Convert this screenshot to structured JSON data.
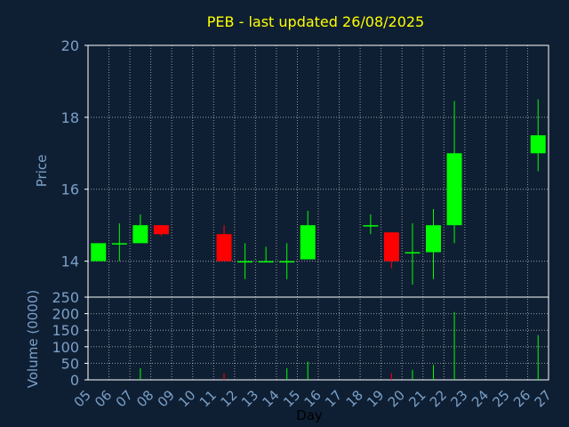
{
  "chart_data": {
    "type": "candlestick",
    "title": "PEB - last updated 26/08/2025",
    "xlabel": "Day",
    "price_panel": {
      "ylabel": "Price",
      "ylim": [
        13,
        20
      ],
      "yticks": [
        14,
        16,
        18,
        20
      ],
      "grid": true
    },
    "volume_panel": {
      "ylabel": "Volume (0000)",
      "ylim": [
        0,
        250
      ],
      "yticks": [
        0,
        50,
        100,
        150,
        200,
        250
      ],
      "grid": true
    },
    "x_ticks": [
      "05",
      "06",
      "07",
      "08",
      "09",
      "10",
      "11",
      "12",
      "13",
      "14",
      "15",
      "16",
      "17",
      "18",
      "19",
      "20",
      "21",
      "22",
      "23",
      "24",
      "25",
      "26",
      "27"
    ],
    "candles": [
      {
        "day": "05",
        "open": 14.0,
        "high": 14.5,
        "low": 14.0,
        "close": 14.5,
        "volume": 0
      },
      {
        "day": "06",
        "open": 14.5,
        "high": 15.05,
        "low": 14.0,
        "close": 14.5,
        "volume": 0
      },
      {
        "day": "07",
        "open": 14.5,
        "high": 15.3,
        "low": 14.5,
        "close": 15.0,
        "volume": 35
      },
      {
        "day": "08",
        "open": 15.0,
        "high": 15.0,
        "low": 14.7,
        "close": 14.75,
        "volume": 0
      },
      {
        "day": "11",
        "open": 14.75,
        "high": 15.0,
        "low": 14.0,
        "close": 14.0,
        "volume": 20
      },
      {
        "day": "12",
        "open": 14.0,
        "high": 14.5,
        "low": 13.5,
        "close": 14.0,
        "volume": 0
      },
      {
        "day": "13",
        "open": 14.0,
        "high": 14.4,
        "low": 14.0,
        "close": 14.0,
        "volume": 0
      },
      {
        "day": "14",
        "open": 14.0,
        "high": 14.5,
        "low": 13.5,
        "close": 14.0,
        "volume": 35
      },
      {
        "day": "15",
        "open": 14.05,
        "high": 15.4,
        "low": 14.05,
        "close": 15.0,
        "volume": 55
      },
      {
        "day": "18",
        "open": 15.0,
        "high": 15.3,
        "low": 14.75,
        "close": 15.0,
        "volume": 0
      },
      {
        "day": "19",
        "open": 14.8,
        "high": 14.8,
        "low": 13.8,
        "close": 14.0,
        "volume": 20
      },
      {
        "day": "20",
        "open": 14.25,
        "high": 15.05,
        "low": 13.35,
        "close": 14.25,
        "volume": 30
      },
      {
        "day": "21",
        "open": 14.25,
        "high": 15.45,
        "low": 13.5,
        "close": 15.0,
        "volume": 45
      },
      {
        "day": "22",
        "open": 15.0,
        "high": 18.45,
        "low": 14.5,
        "close": 17.0,
        "volume": 205
      },
      {
        "day": "26",
        "open": 17.0,
        "high": 18.5,
        "low": 16.5,
        "close": 17.5,
        "volume": 135
      }
    ],
    "colors": {
      "background": "#0f1f33",
      "up": "#00ff00",
      "down": "#ff0000",
      "title": "#ffff00",
      "axis_text": "#7aa0c8",
      "grid": "#ffffff"
    }
  }
}
